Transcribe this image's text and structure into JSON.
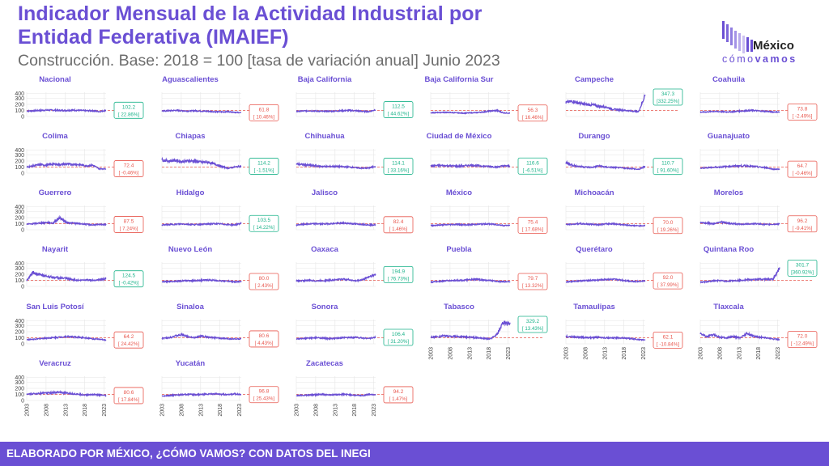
{
  "header": {
    "title_line1": "Indicador Mensual de la Actividad Industrial por",
    "title_line2": "Entidad Federativa (IMAIEF)",
    "subtitle": "Construcción. Base: 2018 = 100 [tasa de variación anual] Junio 2023"
  },
  "logo": {
    "brand": "México",
    "sub_a": "cómo",
    "sub_b": "vamos"
  },
  "footer": {
    "text": "ELABORADO POR MÉXICO, ¿CÓMO VAMOS? CON DATOS DEL INEGI"
  },
  "colors": {
    "accent": "#6A4FD4",
    "line": "#6A4FD4",
    "positive": "#1BB38A",
    "negative": "#E8574E",
    "reference": "#E8574E"
  },
  "chart_data": {
    "type": "line",
    "y_ticks": [
      0,
      100,
      200,
      300,
      400
    ],
    "ylim": [
      0,
      400
    ],
    "x_ticks": [
      "2003",
      "2008",
      "2013",
      "2018",
      "2023"
    ],
    "xlim": [
      2003,
      2023.5
    ],
    "reference_line": 100,
    "grid": true,
    "states": [
      {
        "name": "Nacional",
        "value": "102.2",
        "change": "[ 22.86%]",
        "positive": true
      },
      {
        "name": "Aguascalientes",
        "value": "61.8",
        "change": "[ 10.46%]",
        "positive": false
      },
      {
        "name": "Baja California",
        "value": "112.5",
        "change": "[ 44.62%]",
        "positive": true
      },
      {
        "name": "Baja California Sur",
        "value": "56.3",
        "change": "[ 16.46%]",
        "positive": false
      },
      {
        "name": "Campeche",
        "value": "347.3",
        "change": "[332.25%]",
        "positive": true
      },
      {
        "name": "Coahuila",
        "value": "73.8",
        "change": "[ -2.49%]",
        "positive": false
      },
      {
        "name": "Colima",
        "value": "72.4",
        "change": "[ -0.46%]",
        "positive": false
      },
      {
        "name": "Chiapas",
        "value": "114.2",
        "change": "[ -1.51%]",
        "positive": true
      },
      {
        "name": "Chihuahua",
        "value": "114.1",
        "change": "[ 33.16%]",
        "positive": true
      },
      {
        "name": "Ciudad de México",
        "value": "116.6",
        "change": "[ -6.51%]",
        "positive": true
      },
      {
        "name": "Durango",
        "value": "110.7",
        "change": "[ 91.60%]",
        "positive": true
      },
      {
        "name": "Guanajuato",
        "value": "64.7",
        "change": "[ -0.46%]",
        "positive": false
      },
      {
        "name": "Guerrero",
        "value": "87.5",
        "change": "[ 7.24%]",
        "positive": false
      },
      {
        "name": "Hidalgo",
        "value": "103.5",
        "change": "[ 14.22%]",
        "positive": true
      },
      {
        "name": "Jalisco",
        "value": "82.4",
        "change": "[ 1.46%]",
        "positive": false
      },
      {
        "name": "México",
        "value": "75.4",
        "change": "[ 17.68%]",
        "positive": false
      },
      {
        "name": "Michoacán",
        "value": "70.0",
        "change": "[ 19.26%]",
        "positive": false
      },
      {
        "name": "Morelos",
        "value": "96.2",
        "change": "[ -9.41%]",
        "positive": false
      },
      {
        "name": "Nayarit",
        "value": "124.5",
        "change": "[ -0.42%]",
        "positive": true
      },
      {
        "name": "Nuevo León",
        "value": "80.0",
        "change": "[ 2.43%]",
        "positive": false
      },
      {
        "name": "Oaxaca",
        "value": "194.9",
        "change": "[ 76.73%]",
        "positive": true
      },
      {
        "name": "Puebla",
        "value": "79.7",
        "change": "[ 13.32%]",
        "positive": false
      },
      {
        "name": "Querétaro",
        "value": "92.0",
        "change": "[ 37.99%]",
        "positive": false
      },
      {
        "name": "Quintana Roo",
        "value": "301.7",
        "change": "[360.92%]",
        "positive": true
      },
      {
        "name": "San Luis Potosí",
        "value": "64.2",
        "change": "[ 24.42%]",
        "positive": false
      },
      {
        "name": "Sinaloa",
        "value": "80.6",
        "change": "[ 4.43%]",
        "positive": false
      },
      {
        "name": "Sonora",
        "value": "106.4",
        "change": "[ 31.20%]",
        "positive": true
      },
      {
        "name": "Tabasco",
        "value": "329.2",
        "change": "[ 13.43%]",
        "positive": true
      },
      {
        "name": "Tamaulipas",
        "value": "62.1",
        "change": "[ -10.84%]",
        "positive": false
      },
      {
        "name": "Tlaxcala",
        "value": "72.0",
        "change": "[ -12.49%]",
        "positive": false
      },
      {
        "name": "Veracruz",
        "value": "80.6",
        "change": "[ 17.84%]",
        "positive": false
      },
      {
        "name": "Yucatán",
        "value": "96.8",
        "change": "[ 25.43%]",
        "positive": false
      },
      {
        "name": "Zacatecas",
        "value": "94.2",
        "change": "[ 1.47%]",
        "positive": false
      }
    ],
    "series_profile": {
      "Nacional": [
        90,
        95,
        100,
        105,
        105,
        100,
        100,
        105,
        100,
        95,
        95,
        80,
        102
      ],
      "Aguascalientes": [
        90,
        95,
        100,
        95,
        90,
        95,
        90,
        85,
        80,
        75,
        80,
        70,
        62
      ],
      "Baja California": [
        85,
        90,
        95,
        90,
        85,
        85,
        90,
        95,
        100,
        95,
        85,
        80,
        112
      ],
      "Baja California Sur": [
        60,
        65,
        70,
        65,
        60,
        55,
        60,
        65,
        75,
        90,
        100,
        60,
        56
      ],
      "Campeche": [
        230,
        250,
        220,
        200,
        190,
        170,
        160,
        120,
        110,
        100,
        90,
        80,
        347
      ],
      "Coahuila": [
        70,
        75,
        85,
        80,
        75,
        80,
        90,
        95,
        100,
        90,
        85,
        75,
        74
      ],
      "Colima": [
        100,
        120,
        140,
        130,
        150,
        140,
        150,
        145,
        140,
        120,
        130,
        70,
        72
      ],
      "Chiapas": [
        220,
        200,
        210,
        190,
        200,
        200,
        180,
        180,
        150,
        110,
        80,
        100,
        114
      ],
      "Chihuahua": [
        150,
        140,
        130,
        120,
        110,
        110,
        110,
        105,
        100,
        90,
        80,
        85,
        114
      ],
      "Ciudad de México": [
        120,
        125,
        125,
        120,
        115,
        120,
        130,
        125,
        115,
        110,
        100,
        120,
        117
      ],
      "Durango": [
        170,
        130,
        110,
        100,
        95,
        120,
        100,
        95,
        90,
        80,
        75,
        60,
        111
      ],
      "Guanajuato": [
        80,
        90,
        95,
        100,
        110,
        115,
        120,
        120,
        110,
        100,
        90,
        65,
        65
      ],
      "Guerrero": [
        90,
        100,
        110,
        120,
        110,
        200,
        120,
        110,
        100,
        90,
        80,
        85,
        88
      ],
      "Hidalgo": [
        80,
        85,
        90,
        95,
        90,
        85,
        90,
        95,
        100,
        95,
        85,
        80,
        104
      ],
      "Jalisco": [
        80,
        90,
        95,
        100,
        95,
        100,
        105,
        110,
        105,
        95,
        90,
        80,
        82
      ],
      "México": [
        70,
        75,
        80,
        85,
        90,
        80,
        85,
        90,
        95,
        95,
        85,
        70,
        75
      ],
      "Michoacán": [
        85,
        90,
        100,
        95,
        90,
        85,
        95,
        100,
        90,
        80,
        70,
        65,
        70
      ],
      "Morelos": [
        120,
        110,
        100,
        130,
        110,
        100,
        90,
        95,
        100,
        95,
        85,
        90,
        96
      ],
      "Nayarit": [
        100,
        230,
        190,
        170,
        150,
        140,
        130,
        110,
        100,
        110,
        100,
        110,
        125
      ],
      "Nuevo León": [
        75,
        80,
        85,
        90,
        95,
        95,
        100,
        105,
        100,
        90,
        85,
        75,
        80
      ],
      "Oaxaca": [
        90,
        95,
        100,
        90,
        95,
        100,
        110,
        120,
        110,
        90,
        110,
        160,
        195
      ],
      "Puebla": [
        70,
        80,
        90,
        95,
        100,
        100,
        110,
        115,
        105,
        95,
        85,
        75,
        80
      ],
      "Querétaro": [
        75,
        80,
        90,
        95,
        100,
        105,
        115,
        115,
        110,
        95,
        85,
        80,
        92
      ],
      "Quintana Roo": [
        70,
        75,
        90,
        95,
        85,
        95,
        100,
        110,
        110,
        120,
        115,
        120,
        302
      ],
      "San Luis Potosí": [
        70,
        75,
        85,
        95,
        100,
        110,
        120,
        115,
        105,
        100,
        80,
        75,
        64
      ],
      "Sinaloa": [
        90,
        100,
        130,
        150,
        120,
        100,
        130,
        110,
        100,
        90,
        85,
        80,
        81
      ],
      "Sonora": [
        80,
        85,
        95,
        100,
        95,
        85,
        90,
        100,
        105,
        110,
        95,
        90,
        106
      ],
      "Tabasco": [
        110,
        120,
        130,
        125,
        120,
        115,
        110,
        100,
        90,
        80,
        150,
        350,
        329
      ],
      "Tamaulipas": [
        120,
        115,
        110,
        105,
        100,
        110,
        100,
        95,
        100,
        95,
        85,
        70,
        62
      ],
      "Tlaxcala": [
        170,
        120,
        150,
        110,
        100,
        120,
        100,
        170,
        130,
        110,
        100,
        80,
        72
      ],
      "Veracruz": [
        100,
        110,
        120,
        125,
        130,
        135,
        120,
        110,
        100,
        90,
        100,
        90,
        81
      ],
      "Yucatán": [
        70,
        80,
        90,
        95,
        100,
        95,
        100,
        105,
        110,
        100,
        95,
        110,
        97
      ],
      "Zacatecas": [
        80,
        85,
        90,
        95,
        100,
        90,
        95,
        100,
        95,
        85,
        80,
        100,
        94
      ]
    }
  }
}
